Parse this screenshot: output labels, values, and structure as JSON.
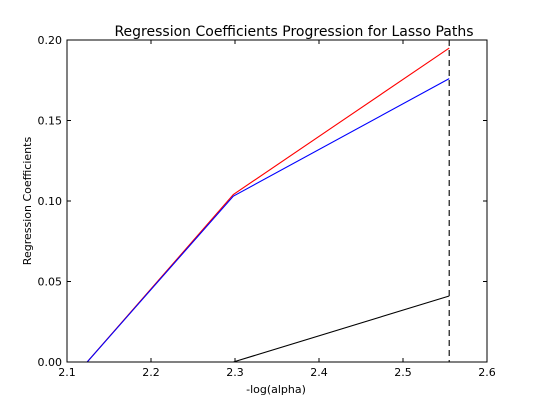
{
  "chart_data": {
    "type": "line",
    "title": "Regression Coefficients Progression for Lasso Paths",
    "xlabel": "-log(alpha)",
    "ylabel": "Regression Coefficients",
    "xlim": [
      2.1,
      2.6
    ],
    "ylim": [
      0.0,
      0.2
    ],
    "xticks": [
      "2.1",
      "2.2",
      "2.3",
      "2.4",
      "2.5",
      "2.6"
    ],
    "yticks": [
      "0.00",
      "0.05",
      "0.10",
      "0.15",
      "0.20"
    ],
    "grid": false,
    "legend": "none",
    "series": [
      {
        "color": "#ff0000",
        "x": [
          2.124,
          2.298,
          2.555
        ],
        "y": [
          0.0,
          0.104,
          0.195
        ]
      },
      {
        "color": "#0000ff",
        "x": [
          2.124,
          2.298,
          2.555
        ],
        "y": [
          0.0,
          0.103,
          0.176
        ]
      },
      {
        "color": "#000000",
        "x": [
          2.124,
          2.298,
          2.555
        ],
        "y": [
          0.0,
          0.0,
          0.041
        ]
      }
    ],
    "vline": {
      "x": 2.555,
      "style": "dashed",
      "color": "#000000"
    }
  }
}
